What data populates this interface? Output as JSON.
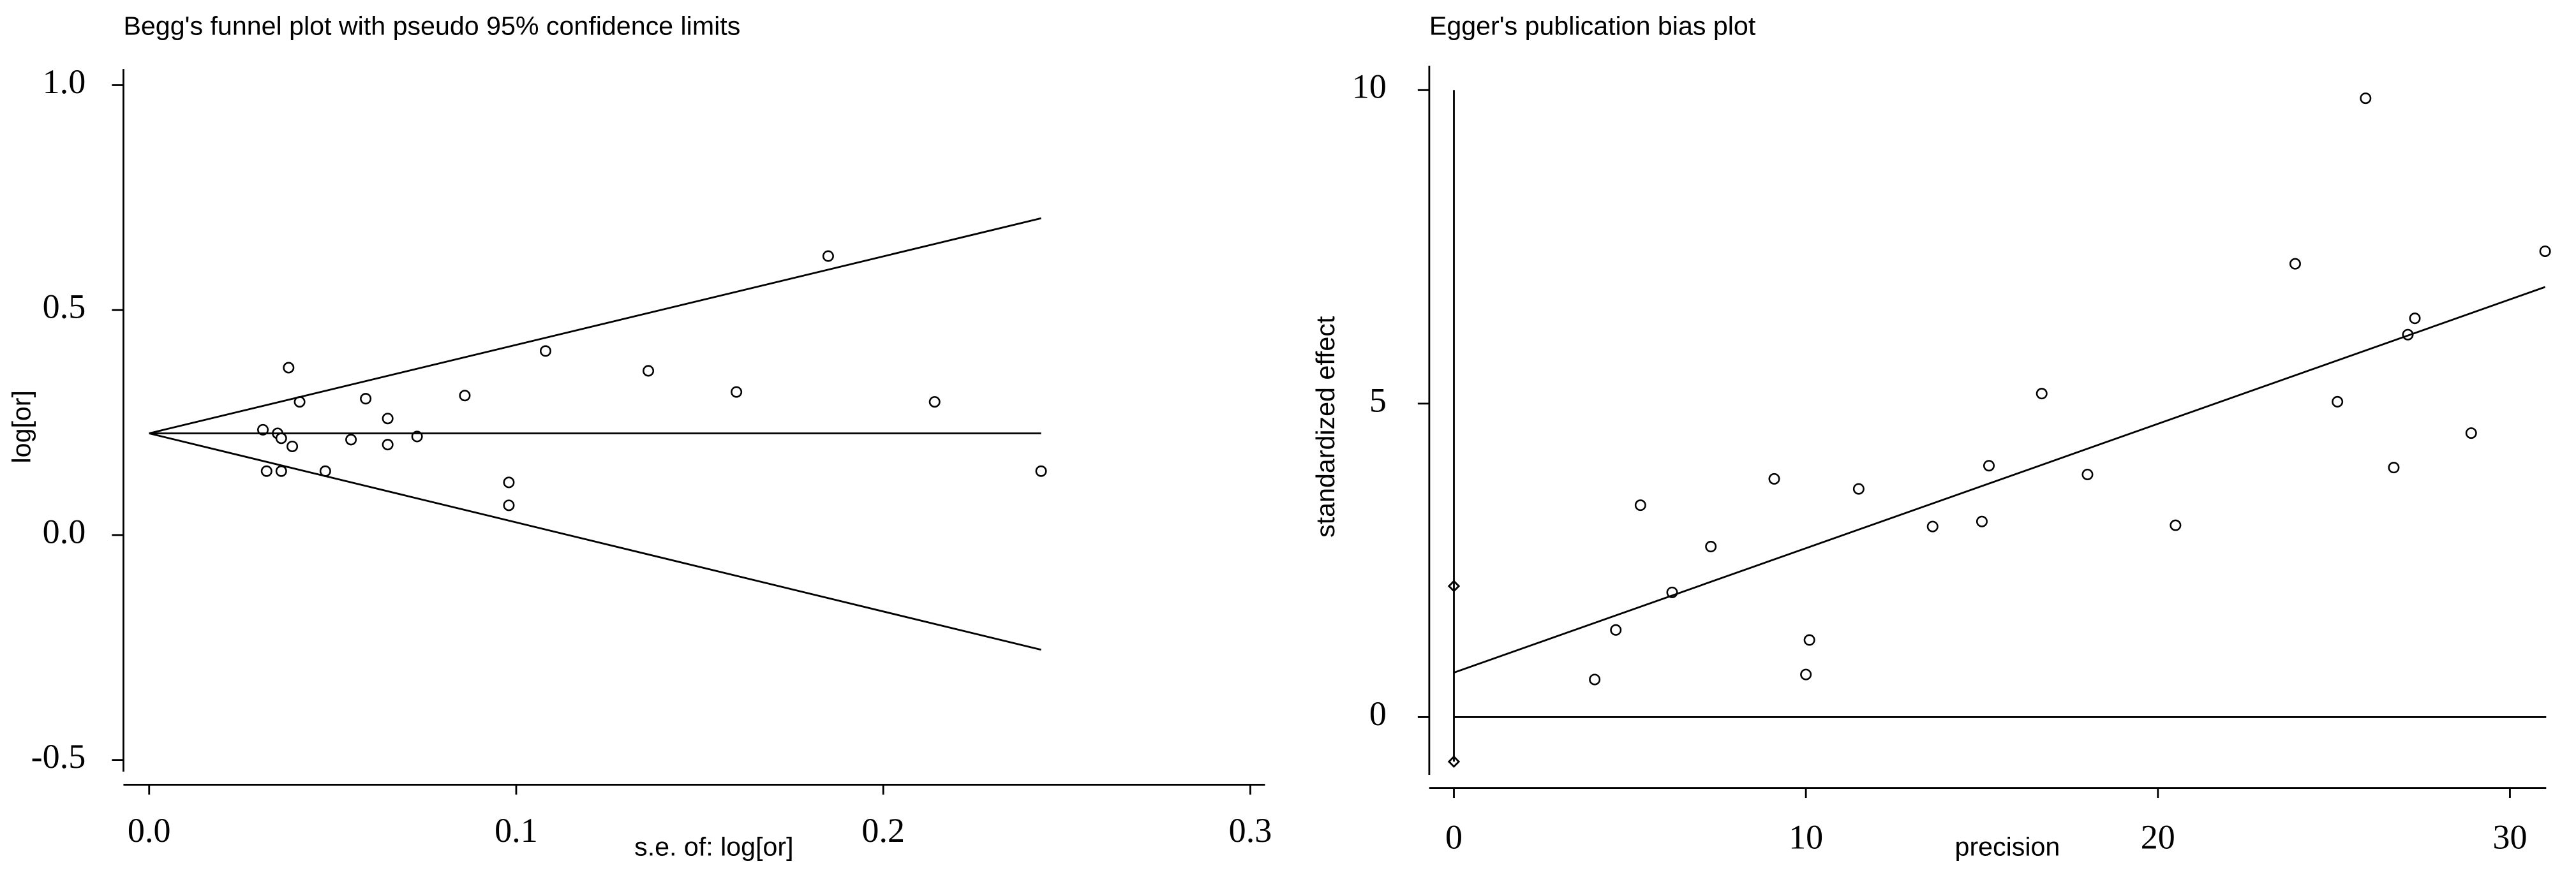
{
  "chart_data": [
    {
      "type": "scatter",
      "title": "Begg's funnel plot with pseudo 95% confidence limits",
      "x_label": "s.e. of: log[or]",
      "y_label": "log[or]",
      "xlim": [
        -0.007,
        0.304
      ],
      "ylim": [
        -0.555,
        1.036
      ],
      "xticks": [
        {
          "value": 0,
          "label": "0.0"
        },
        0.1,
        0.2,
        0.3
      ],
      "yticks": [
        -0.5,
        {
          "value": 0,
          "label": "0.0"
        },
        0.5,
        {
          "value": 1,
          "label": "1.0"
        }
      ],
      "color": "#000000",
      "series": [
        {
          "mode": "markers",
          "marker": "circle",
          "x": [
            0.031,
            0.032,
            0.035,
            0.036,
            0.036,
            0.038,
            0.039,
            0.041,
            0.048,
            0.055,
            0.059,
            0.065,
            0.065,
            0.073,
            0.086,
            0.098,
            0.098,
            0.108,
            0.136,
            0.16,
            0.185,
            0.214,
            0.243
          ],
          "values": [
            0.234,
            0.142,
            0.226,
            0.215,
            0.142,
            0.372,
            0.197,
            0.296,
            0.142,
            0.212,
            0.303,
            0.259,
            0.201,
            0.219,
            0.31,
            0.117,
            0.066,
            0.409,
            0.365,
            0.318,
            0.62,
            0.296,
            0.142
          ]
        },
        {
          "mode": "lines",
          "x": [
            0,
            0.243
          ],
          "values": [
            0.226,
            0.226
          ]
        },
        {
          "mode": "lines",
          "x": [
            0,
            0.243
          ],
          "values": [
            0.226,
            0.704
          ]
        },
        {
          "mode": "lines",
          "x": [
            0,
            0.243
          ],
          "values": [
            0.226,
            -0.255
          ]
        }
      ]
    },
    {
      "type": "scatter",
      "title": "Egger's publication bias plot",
      "x_label": "precision",
      "y_label": "standardized effect",
      "xlim": [
        -0.7,
        31.03
      ],
      "ylim": [
        -1.13,
        10.39
      ],
      "xticks": [
        0,
        10,
        20,
        30
      ],
      "yticks": [
        0,
        5,
        10
      ],
      "color": "#000000",
      "zero_lines": true,
      "series": [
        {
          "mode": "markers",
          "marker": "circle",
          "x": [
            4.0,
            4.6,
            5.3,
            6.2,
            7.3,
            9.1,
            10.0,
            10.1,
            11.5,
            13.6,
            15.0,
            15.2,
            16.7,
            18.0,
            20.5,
            23.9,
            25.1,
            25.9,
            26.7,
            27.1,
            27.3,
            28.9,
            31.0
          ],
          "values": [
            0.6,
            1.39,
            3.38,
            1.99,
            2.72,
            3.8,
            0.68,
            1.23,
            3.64,
            3.04,
            3.12,
            4.01,
            5.16,
            3.87,
            3.06,
            7.23,
            5.03,
            9.87,
            3.98,
            6.1,
            6.36,
            4.53,
            7.43
          ]
        },
        {
          "mode": "markers",
          "marker": "diamond",
          "x": [
            0,
            0
          ],
          "values": [
            2.09,
            -0.71
          ]
        },
        {
          "mode": "lines",
          "x": [
            0,
            31.0
          ],
          "values": [
            0.71,
            6.86
          ]
        }
      ]
    }
  ]
}
